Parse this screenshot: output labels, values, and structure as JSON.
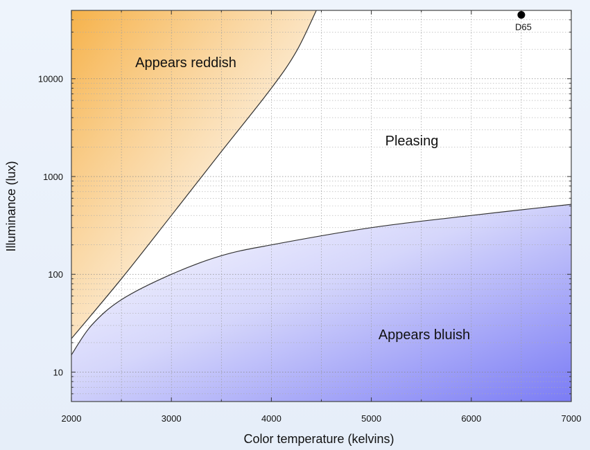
{
  "chart_data": {
    "type": "area",
    "xlabel": "Color temperature (kelvins)",
    "ylabel": "Illuminance (lux)",
    "x_scale": "linear",
    "y_scale": "log",
    "xlim": [
      2000,
      7000
    ],
    "ylim": [
      5,
      50000
    ],
    "x_ticks": [
      2000,
      3000,
      4000,
      5000,
      6000,
      7000
    ],
    "y_ticks": [
      10,
      100,
      1000,
      10000
    ],
    "x_tick_labels": [
      "2000",
      "3000",
      "4000",
      "5000",
      "6000",
      "7000"
    ],
    "y_tick_labels": [
      "10",
      "100",
      "1000",
      "10000"
    ],
    "grid": true,
    "series": [
      {
        "x": [
          2000,
          2500,
          3000,
          3500,
          4000,
          4250,
          4450
        ],
        "y": [
          22,
          90,
          400,
          1800,
          8000,
          19000,
          50000
        ]
      },
      {
        "x": [
          2000,
          2200,
          2500,
          3000,
          3500,
          4000,
          5000,
          6000,
          7000
        ],
        "y": [
          15,
          30,
          55,
          100,
          155,
          200,
          300,
          400,
          520
        ]
      }
    ],
    "regions": [
      {
        "label": "Appears reddish",
        "color": "#f6b24a"
      },
      {
        "label": "Pleasing",
        "color": "#ffffff"
      },
      {
        "label": "Appears bluish",
        "color": "#7b7cf5"
      }
    ],
    "points": [
      {
        "label": "D65",
        "x": 6500,
        "y": 45000
      }
    ]
  }
}
